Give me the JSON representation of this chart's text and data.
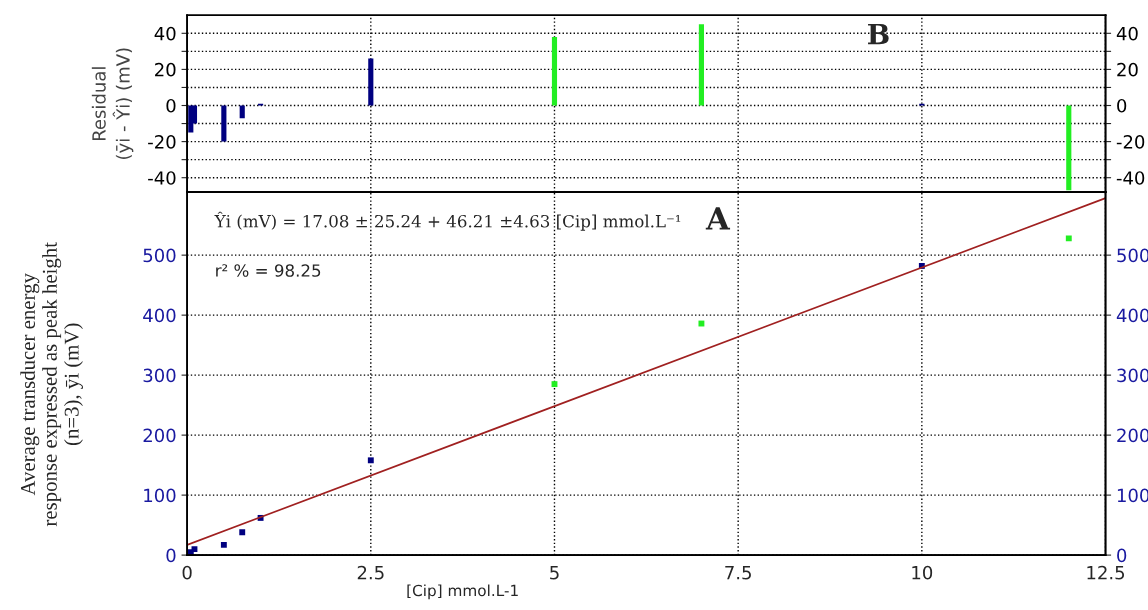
{
  "chart_data": [
    {
      "type": "bar",
      "ylabel": "Residual\n(ȳi - Ŷi) (mV)",
      "annotations": [
        "B"
      ],
      "series": [
        {
          "color": "#000080",
          "x": [
            0.05,
            0.1,
            0.5,
            0.75,
            1,
            2.5,
            10
          ],
          "values": [
            -15,
            -10,
            -20,
            -7,
            1,
            26,
            1
          ]
        },
        {
          "color": "#22ee22",
          "x": [
            5,
            7,
            12
          ],
          "values": [
            38,
            45,
            -47
          ]
        }
      ],
      "xlim": [
        0,
        12.5
      ],
      "xticks": [
        {
          "value": 0,
          "label": null
        },
        {
          "value": 2.5,
          "label": null
        },
        {
          "value": 5,
          "label": null
        },
        {
          "value": 7.5,
          "label": null
        },
        {
          "value": 10,
          "label": null
        },
        {
          "value": 12.5,
          "label": null
        }
      ],
      "ylim": [
        -48,
        50
      ],
      "yticks": [
        -40,
        {
          "value": -30,
          "label": null
        },
        -20,
        {
          "value": -10,
          "label": null
        },
        0,
        {
          "value": 10,
          "label": null
        },
        20,
        {
          "value": 30,
          "label": null
        },
        40
      ],
      "y2lim": [
        -48,
        50
      ],
      "y2ticks": [
        -40,
        {
          "value": -30,
          "label": null
        },
        -20,
        {
          "value": -10,
          "label": null
        },
        0,
        {
          "value": 10,
          "label": null
        },
        20,
        {
          "value": 30,
          "label": null
        },
        40
      ],
      "tick_labels": "y",
      "grid": true
    },
    {
      "type": "scatter",
      "xlabel": "[Cip] mmol.L-1",
      "ylabel": "Average transducer energy\nresponse expressed as peak height\n(n=3), ȳi (mV)",
      "annotations": [
        "Ŷi (mV) = 17.08 ± 25.24 + 46.21 ±4.63 [Cip] mmol.L⁻¹",
        "r² % = 98.25",
        "A"
      ],
      "series": [
        {
          "color": "#000080",
          "x": [
            0.05,
            0.1,
            0.5,
            0.75,
            1,
            2.5,
            10
          ],
          "values": [
            5,
            10,
            17,
            38,
            62,
            158,
            482
          ]
        },
        {
          "color": "#22ee22",
          "x": [
            5,
            7,
            12
          ],
          "values": [
            285,
            386,
            528
          ]
        },
        {
          "type": "line",
          "marker": "none",
          "color": "#a02020",
          "x": [
            0,
            12.5
          ],
          "values": [
            17,
            595
          ]
        }
      ],
      "marker": "square",
      "xlim": [
        0,
        12.5
      ],
      "xticks": [
        0,
        2.5,
        5,
        7.5,
        10,
        12.5
      ],
      "ylim": [
        0,
        605
      ],
      "yticks": [
        0,
        100,
        200,
        300,
        400,
        500
      ],
      "y2lim": [
        0,
        605
      ],
      "y2ticks": [
        0,
        100,
        200,
        300,
        400,
        500
      ],
      "grid": true
    }
  ]
}
